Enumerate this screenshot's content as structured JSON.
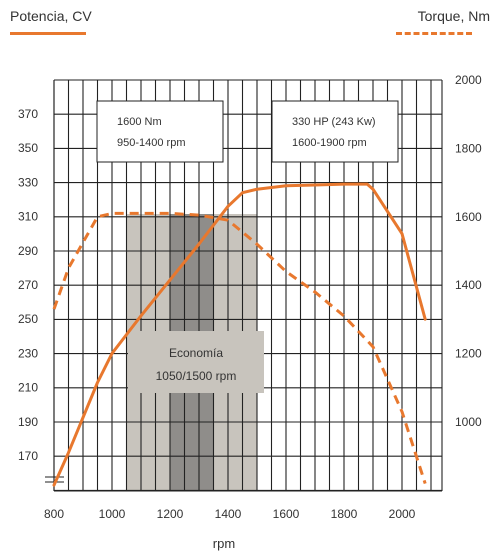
{
  "legend": {
    "power_label": "Potencia, CV",
    "torque_label": "Torque, Nm"
  },
  "colors": {
    "curve": "#E8782E",
    "economy_light": "#c8c4bd",
    "economy_dark": "#8f8d8a",
    "grid": "#222222"
  },
  "chart_data": {
    "type": "line",
    "xlabel": "rpm",
    "xlim": [
      800,
      2080
    ],
    "x_ticks": [
      800,
      1000,
      1200,
      1400,
      1600,
      1800,
      2000
    ],
    "x_tick_labels": [
      "800",
      "1000",
      "1200",
      "1400",
      "1600",
      "1800",
      "2000"
    ],
    "y_left": {
      "label": "Potencia, CV",
      "lim": [
        150,
        390
      ],
      "ticks": [
        170,
        190,
        210,
        230,
        250,
        270,
        290,
        310,
        330,
        350,
        370
      ]
    },
    "y_right": {
      "label": "Torque, Nm",
      "lim": [
        800,
        2000
      ],
      "ticks": [
        1000,
        1200,
        1400,
        1600,
        1800,
        2000
      ]
    },
    "series": [
      {
        "name": "Potencia, CV",
        "axis": "left",
        "style": "solid",
        "x": [
          800,
          850,
          950,
          1000,
          1100,
          1200,
          1300,
          1400,
          1450,
          1500,
          1600,
          1700,
          1800,
          1880,
          1900,
          2000,
          2080
        ],
        "y": [
          153,
          172,
          213,
          230,
          252,
          273,
          294,
          316,
          324,
          326,
          328,
          328.5,
          329,
          329,
          326,
          300,
          250
        ]
      },
      {
        "name": "Torque, Nm",
        "axis": "right",
        "style": "dashed",
        "x": [
          800,
          850,
          950,
          1000,
          1100,
          1200,
          1300,
          1400,
          1500,
          1600,
          1700,
          1800,
          1900,
          2000,
          2080
        ],
        "y": [
          1330,
          1450,
          1600,
          1610,
          1610,
          1610,
          1605,
          1590,
          1520,
          1440,
          1380,
          1310,
          1220,
          1030,
          820
        ]
      }
    ],
    "economy_band": {
      "label": "Economía",
      "range_label": "1050/1500 rpm",
      "rpm_range": [
        1050,
        1500
      ],
      "dark_rpm_range": [
        1200,
        1350
      ]
    },
    "annotations": [
      {
        "line1": "1600 Nm",
        "line2": "950-1400 rpm"
      },
      {
        "line1": "330 HP (243 Kw)",
        "line2": "1600-1900 rpm"
      }
    ]
  }
}
